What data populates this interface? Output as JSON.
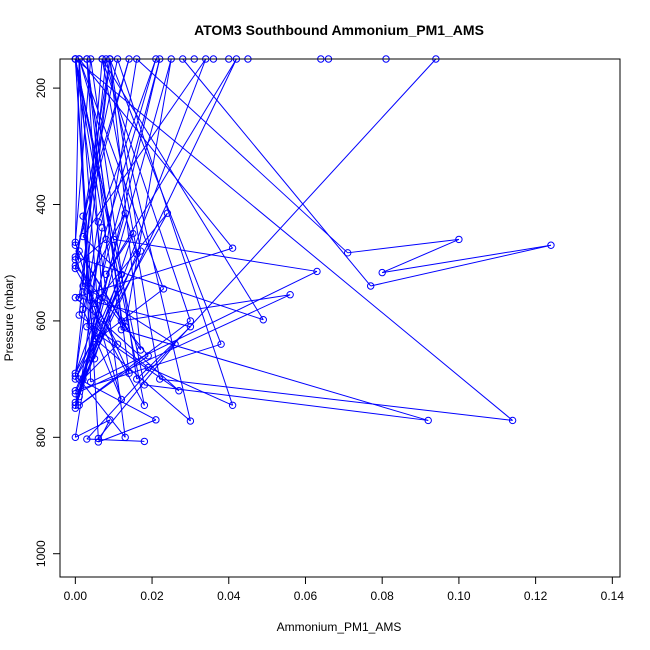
{
  "chart_data": {
    "type": "scatter",
    "title": "ATOM3 Southbound Ammonium_PM1_AMS",
    "xlabel": "Ammonium_PM1_AMS",
    "ylabel": "Pressure (mbar)",
    "xlim": [
      -0.004,
      0.142
    ],
    "ylim": [
      1040,
      150
    ],
    "y_reversed": true,
    "x_ticks": [
      0.0,
      0.02,
      0.04,
      0.06,
      0.08,
      0.1,
      0.12,
      0.14
    ],
    "x_tick_labels": [
      "0.00",
      "0.02",
      "0.04",
      "0.06",
      "0.08",
      "0.10",
      "0.12",
      "0.14"
    ],
    "y_ticks": [
      200,
      400,
      600,
      800,
      1000
    ],
    "y_tick_labels": [
      "200",
      "400",
      "600",
      "800",
      "1000"
    ],
    "grid": false,
    "series_color": "#0000ff",
    "x": [
      0.0,
      0.001,
      0.016,
      0.0,
      0.034,
      0.002,
      0.012,
      0.0,
      0.024,
      0.005,
      0.022,
      0.001,
      0.007,
      0.003,
      0.027,
      0.0,
      0.041,
      0.001,
      0.006,
      0.0,
      0.015,
      0.008,
      0.042,
      0.002,
      0.011,
      0.0,
      0.009,
      0.017,
      0.0,
      0.005,
      0.013,
      0.002,
      0.018,
      0.0,
      0.01,
      0.063,
      0.004,
      0.001,
      0.023,
      0.006,
      0.0,
      0.056,
      0.012,
      0.003,
      0.008,
      0.0,
      0.019,
      0.001,
      0.03,
      0.007,
      0.049,
      0.0,
      0.014,
      0.002,
      0.005,
      0.011,
      0.0,
      0.038,
      0.009,
      0.001,
      0.03,
      0.016,
      0.004,
      0.0,
      0.012,
      0.002,
      0.021,
      0.006,
      0.0,
      0.009,
      0.017,
      0.001,
      0.013,
      0.025,
      0.0,
      0.007,
      0.003,
      0.014,
      0.0,
      0.011,
      0.041,
      0.019,
      0.001,
      0.008,
      0.03,
      0.005,
      0.0,
      0.018,
      0.092,
      0.012,
      0.0,
      0.114,
      0.022,
      0.007,
      0.002,
      0.026,
      0.006,
      0.0,
      0.013,
      0.001,
      0.021,
      0.006,
      0.009,
      0.0,
      0.016,
      0.071,
      0.1,
      0.08,
      0.124,
      0.077,
      0.028,
      0.045,
      0.031,
      0.036,
      0.04,
      0.064,
      0.066,
      0.081,
      0.094,
      0.003,
      0.018
    ],
    "y": [
      470,
      150,
      485,
      740,
      150,
      455,
      520,
      700,
      415,
      570,
      150,
      730,
      440,
      610,
      720,
      560,
      475,
      150,
      590,
      750,
      450,
      520,
      150,
      700,
      640,
      510,
      150,
      480,
      690,
      600,
      415,
      550,
      745,
      150,
      460,
      515,
      705,
      150,
      545,
      630,
      725,
      555,
      600,
      150,
      460,
      505,
      660,
      745,
      600,
      150,
      598,
      490,
      150,
      420,
      665,
      545,
      720,
      640,
      150,
      560,
      610,
      700,
      150,
      465,
      735,
      580,
      150,
      430,
      695,
      150,
      650,
      480,
      610,
      150,
      745,
      560,
      150,
      690,
      495,
      150,
      745,
      680,
      590,
      150,
      772,
      630,
      150,
      710,
      771,
      615,
      150,
      771,
      700,
      150,
      540,
      640,
      802,
      150,
      800,
      700,
      770,
      808,
      770,
      800,
      150,
      483,
      460,
      517,
      470,
      540,
      150,
      150,
      150,
      150,
      150,
      150,
      150,
      150,
      150,
      803,
      807
    ]
  }
}
